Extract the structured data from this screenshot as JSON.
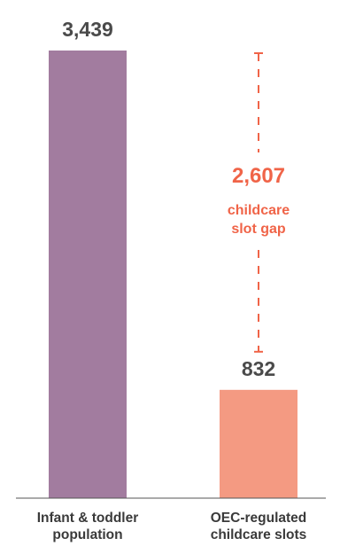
{
  "chart_data": {
    "type": "bar",
    "categories": [
      [
        "Infant & toddler",
        "population"
      ],
      [
        "OEC-regulated",
        "childcare slots"
      ]
    ],
    "values": [
      3439,
      832
    ],
    "value_labels": [
      "3,439",
      "832"
    ],
    "bar_colors": [
      "#a27c9f",
      "#f49a82"
    ],
    "ylim": [
      0,
      3439
    ],
    "annotation": {
      "value_label": "2,607",
      "text_lines": [
        "childcare",
        "slot gap"
      ],
      "color": "#f06448",
      "spans": [
        832,
        3439
      ]
    }
  }
}
